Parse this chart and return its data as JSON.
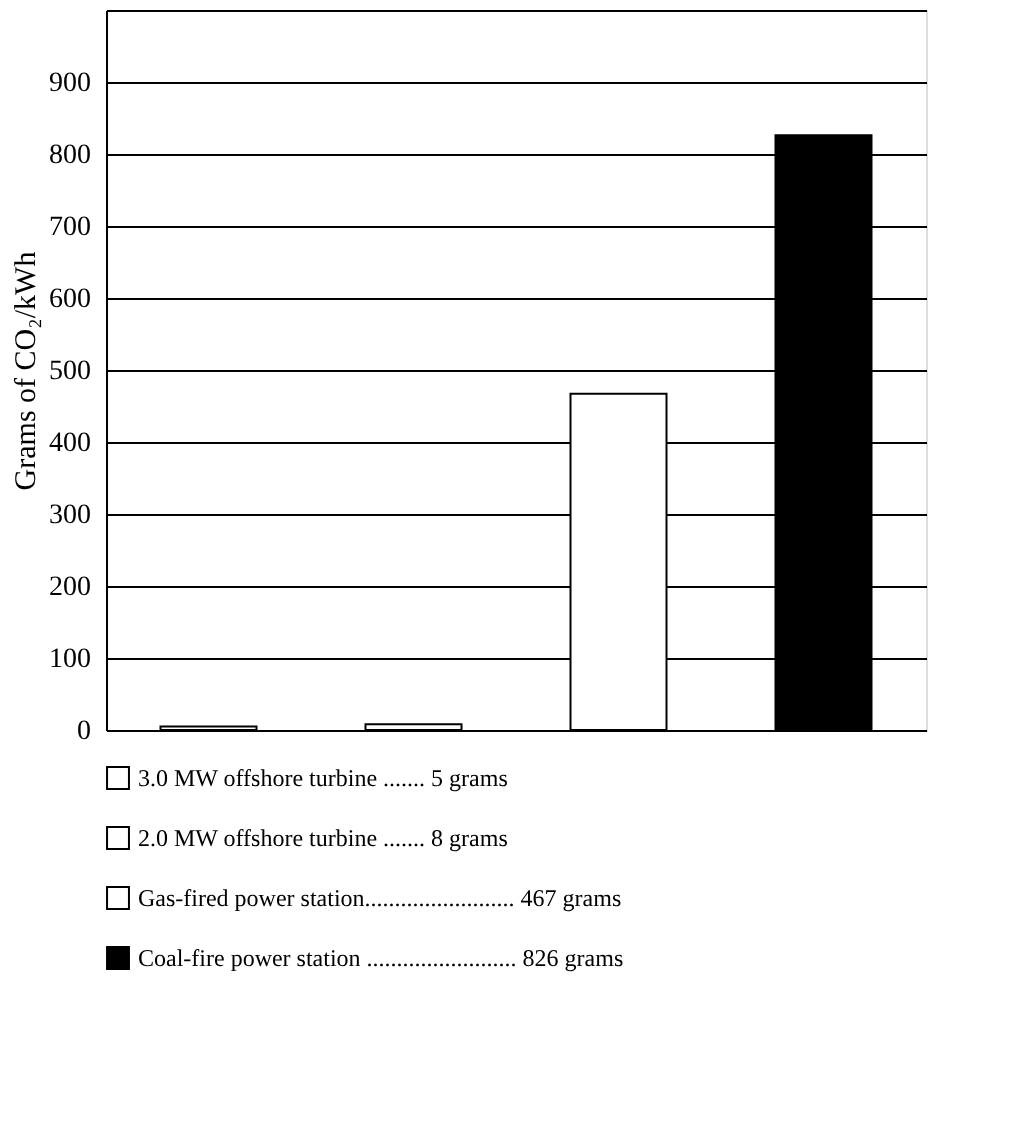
{
  "chart_data": {
    "type": "bar",
    "ylabel": "Grams of CO₂/kWh",
    "categories": [
      null,
      null,
      null,
      null
    ],
    "series": [
      {
        "name": "3.0 MW offshore turbine ....... 5 grams",
        "color": "#ffffff",
        "values": [
          5,
          null,
          null,
          null
        ]
      },
      {
        "name": "2.0 MW offshore turbine ....... 8 grams",
        "color": "#ffffff",
        "values": [
          null,
          8,
          null,
          null
        ]
      },
      {
        "name": "Gas-fired power station......................... 467 grams",
        "color": "#ffffff",
        "values": [
          null,
          null,
          467,
          null
        ]
      },
      {
        "name": "Coal-fire power station ......................... 826 grams",
        "color": "#000000",
        "values": [
          null,
          null,
          null,
          826
        ]
      }
    ],
    "ylim": [
      0,
      1000
    ],
    "yticks": [
      0,
      100,
      200,
      300,
      400,
      500,
      600,
      700,
      800,
      900,
      {
        "value": 1000,
        "label": null
      }
    ],
    "grid": "y",
    "legend": "bottom"
  }
}
